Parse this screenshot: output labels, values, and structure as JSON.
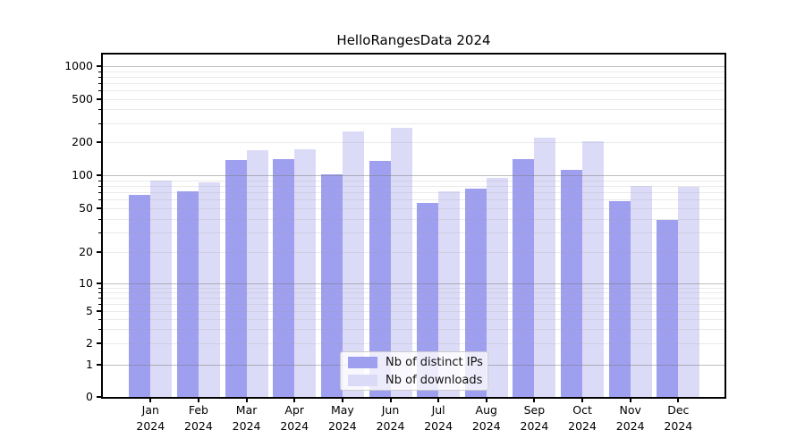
{
  "title": "HelloRangesData 2024",
  "chart_data": {
    "type": "bar",
    "title": "HelloRangesData 2024",
    "categories": [
      "Jan",
      "Feb",
      "Mar",
      "Apr",
      "May",
      "Jun",
      "Jul",
      "Aug",
      "Sep",
      "Oct",
      "Nov",
      "Dec"
    ],
    "year": "2024",
    "series": [
      {
        "name": "Nb of distinct IPs",
        "color": "#9f9ff0",
        "values": [
          66,
          71,
          137,
          141,
          102,
          136,
          56,
          76,
          139,
          112,
          58,
          39
        ]
      },
      {
        "name": "Nb of downloads",
        "color": "#dbdbf8",
        "values": [
          90,
          86,
          168,
          173,
          253,
          273,
          72,
          94,
          219,
          204,
          80,
          78
        ]
      }
    ],
    "yscale": "symlog",
    "yticks": [
      0,
      1,
      2,
      5,
      10,
      20,
      50,
      100,
      200,
      500,
      1000
    ],
    "ylim": [
      0,
      1285
    ],
    "grid": true,
    "legend_position": "lower center",
    "axis_color": "#000000",
    "major_grid_color": "#c4c4c4",
    "minor_grid_color": "#ececec"
  }
}
